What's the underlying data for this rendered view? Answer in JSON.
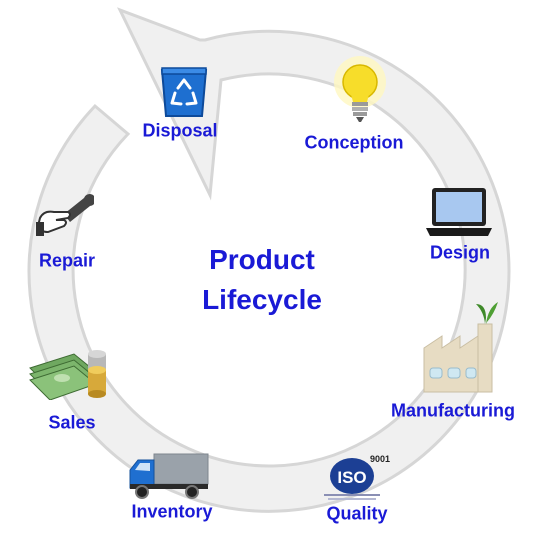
{
  "title": {
    "line1": "Product",
    "line2": "Lifecycle"
  },
  "stages": [
    {
      "label": "Disposal",
      "icon": "recycle-bin-icon"
    },
    {
      "label": "Conception",
      "icon": "light-bulb-icon"
    },
    {
      "label": "Design",
      "icon": "laptop-icon"
    },
    {
      "label": "Manufacturing",
      "icon": "factory-icon"
    },
    {
      "label": "Quality",
      "icon": "iso-badge-icon",
      "badge_text": "ISO",
      "badge_number": "9001"
    },
    {
      "label": "Inventory",
      "icon": "delivery-truck-icon"
    },
    {
      "label": "Sales",
      "icon": "money-stack-icon"
    },
    {
      "label": "Repair",
      "icon": "wrench-hand-icon"
    }
  ],
  "colors": {
    "label": "#1a1ad6",
    "cycle_ring": "#e6e6e6",
    "cycle_outline": "#d4d4d4"
  }
}
